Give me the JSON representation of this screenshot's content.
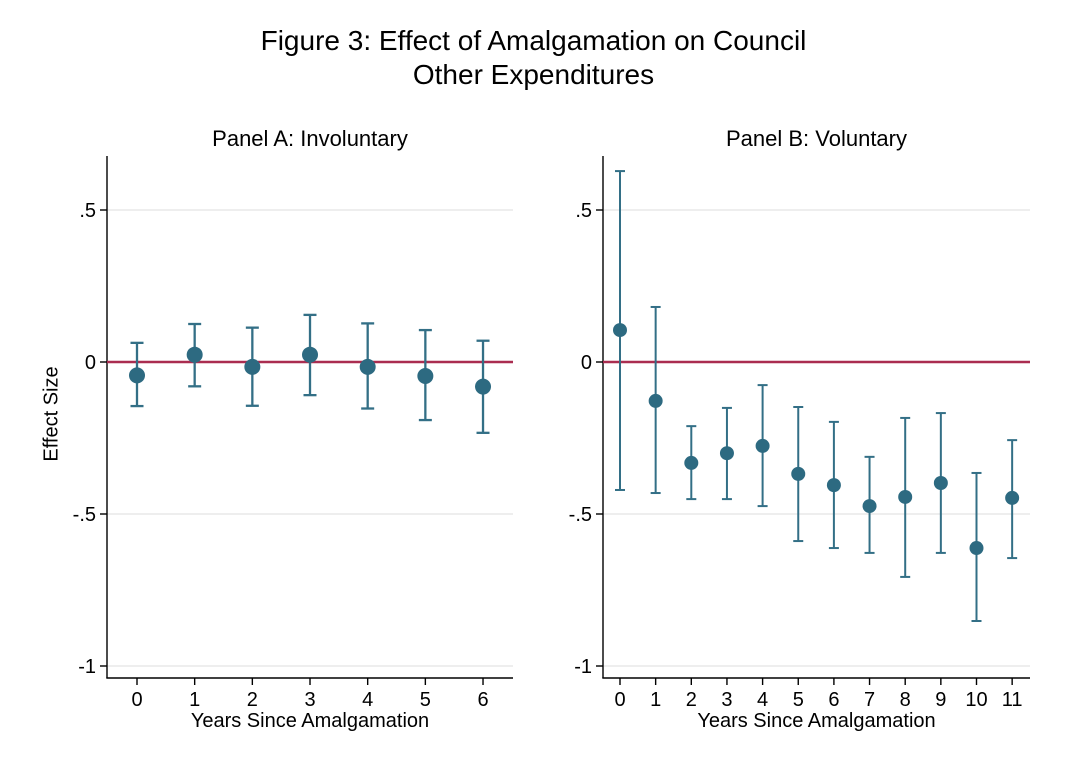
{
  "figure": {
    "title_line1": "Figure 3: Effect of Amalgamation on Council",
    "title_line2": "Other Expenditures"
  },
  "colors": {
    "marker": "#2d6a81",
    "error_bar": "#336f86",
    "zero_line": "#aa2d50",
    "gridline": "#e4e4e4",
    "axis": "#000000",
    "text": "#000000"
  },
  "chart_data": [
    {
      "type": "scatter",
      "panel": "A",
      "title": "Panel A: Involuntary",
      "xlabel": "Years Since Amalgamation",
      "ylabel": "Effect Size",
      "x_ticks": [
        "0",
        "1",
        "2",
        "3",
        "4",
        "5",
        "6"
      ],
      "y_ticks": [
        {
          "label": ".5",
          "value": 0.5
        },
        {
          "label": "0",
          "value": 0
        },
        {
          "label": "-.5",
          "value": -0.5
        },
        {
          "label": "-1",
          "value": -1
        }
      ],
      "ylim": [
        -1.04,
        0.68
      ],
      "grid": true,
      "ref_line": 0,
      "series": [
        {
          "name": "point estimate with 95% CI",
          "points": [
            {
              "x": 0,
              "est": -0.044,
              "lo": -0.145,
              "hi": 0.063
            },
            {
              "x": 1,
              "est": 0.024,
              "lo": -0.08,
              "hi": 0.125
            },
            {
              "x": 2,
              "est": -0.016,
              "lo": -0.144,
              "hi": 0.113
            },
            {
              "x": 3,
              "est": 0.024,
              "lo": -0.109,
              "hi": 0.155
            },
            {
              "x": 4,
              "est": -0.016,
              "lo": -0.153,
              "hi": 0.127
            },
            {
              "x": 5,
              "est": -0.046,
              "lo": -0.191,
              "hi": 0.105
            },
            {
              "x": 6,
              "est": -0.081,
              "lo": -0.233,
              "hi": 0.07
            }
          ]
        }
      ]
    },
    {
      "type": "scatter",
      "panel": "B",
      "title": "Panel B: Voluntary",
      "xlabel": "Years Since Amalgamation",
      "ylabel": "",
      "x_ticks": [
        "0",
        "1",
        "2",
        "3",
        "4",
        "5",
        "6",
        "7",
        "8",
        "9",
        "10",
        "11"
      ],
      "y_ticks": [
        {
          "label": ".5",
          "value": 0.5
        },
        {
          "label": "0",
          "value": 0
        },
        {
          "label": "-.5",
          "value": -0.5
        },
        {
          "label": "-1",
          "value": -1
        }
      ],
      "ylim": [
        -1.04,
        0.68
      ],
      "grid": true,
      "ref_line": 0,
      "series": [
        {
          "name": "point estimate with 95% CI",
          "points": [
            {
              "x": 0,
              "est": 0.105,
              "lo": -0.421,
              "hi": 0.628
            },
            {
              "x": 1,
              "est": -0.128,
              "lo": -0.431,
              "hi": 0.181
            },
            {
              "x": 2,
              "est": -0.332,
              "lo": -0.451,
              "hi": -0.211
            },
            {
              "x": 3,
              "est": -0.3,
              "lo": -0.451,
              "hi": -0.151
            },
            {
              "x": 4,
              "est": -0.276,
              "lo": -0.474,
              "hi": -0.076
            },
            {
              "x": 5,
              "est": -0.368,
              "lo": -0.589,
              "hi": -0.148
            },
            {
              "x": 6,
              "est": -0.405,
              "lo": -0.612,
              "hi": -0.197
            },
            {
              "x": 7,
              "est": -0.474,
              "lo": -0.628,
              "hi": -0.312
            },
            {
              "x": 8,
              "est": -0.444,
              "lo": -0.707,
              "hi": -0.184
            },
            {
              "x": 9,
              "est": -0.398,
              "lo": -0.628,
              "hi": -0.168
            },
            {
              "x": 10,
              "est": -0.612,
              "lo": -0.852,
              "hi": -0.365
            },
            {
              "x": 11,
              "est": -0.447,
              "lo": -0.645,
              "hi": -0.257
            }
          ]
        }
      ]
    }
  ]
}
